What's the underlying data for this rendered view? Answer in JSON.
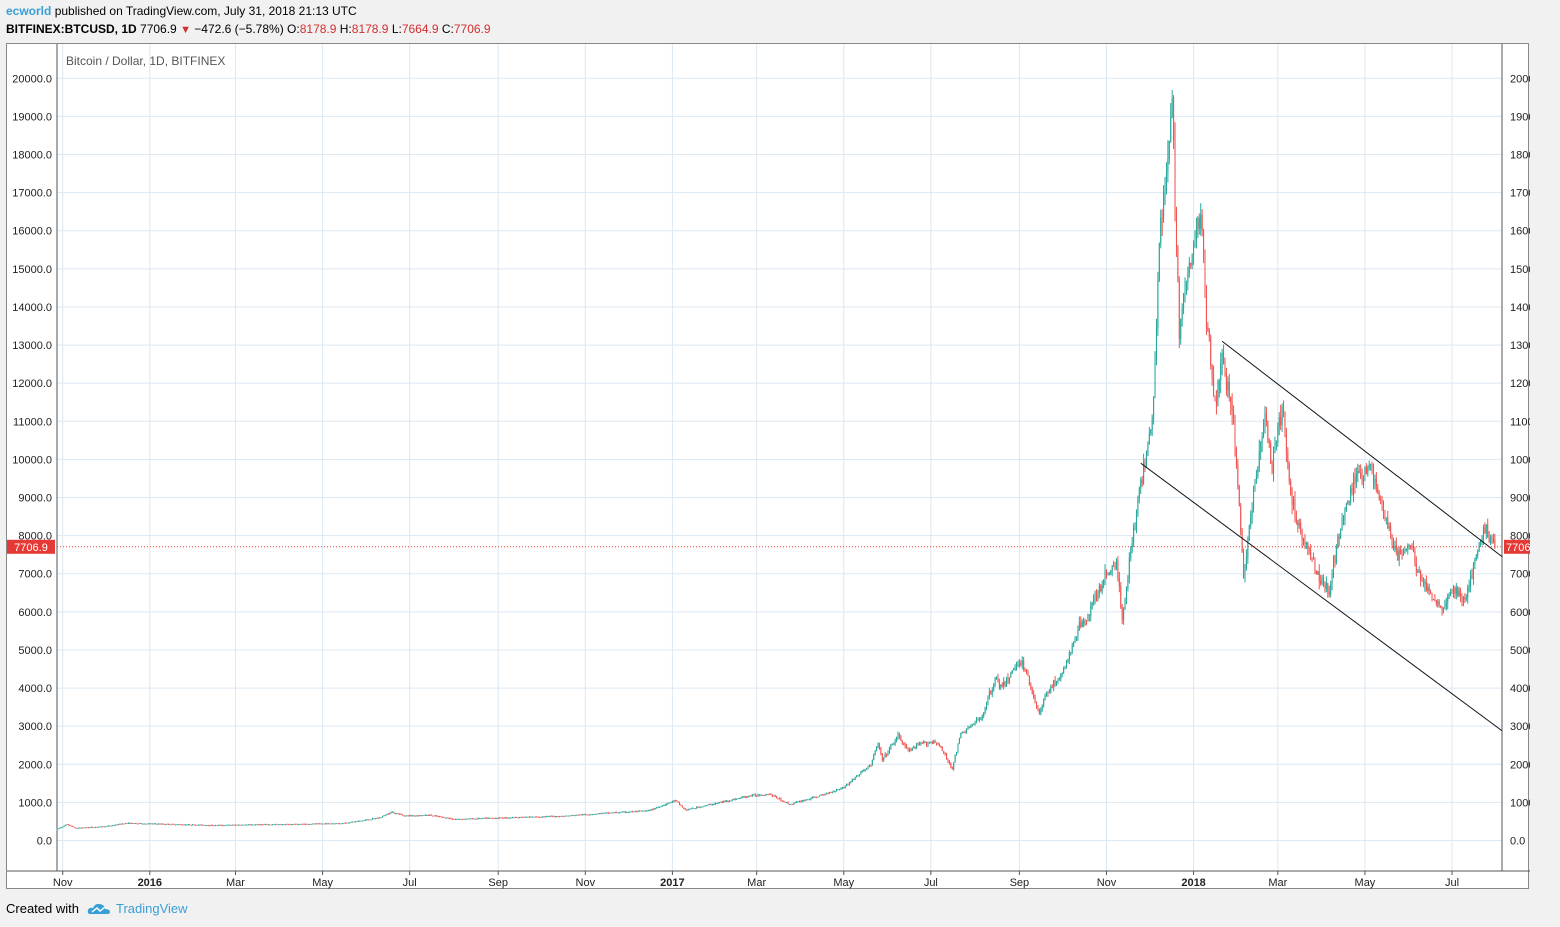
{
  "header": {
    "author": "ecworld",
    "published": "published on TradingView.com, July 31, 2018 21:13 UTC"
  },
  "symbol_line": {
    "symbol": "BITFINEX:BTCUSD, 1D",
    "last": "7706.9",
    "change": "−472.6 (−5.78%)",
    "o_label": "O:",
    "o_value": "8178.9",
    "h_label": "H:",
    "h_value": "8178.9",
    "l_label": "L:",
    "l_value": "7664.9",
    "c_label": "C:",
    "c_value": "7706.9",
    "direction_icon": "down-triangle-icon"
  },
  "footer": {
    "created_with": "Created with",
    "brand": "TradingView",
    "logo_icon": "tradingview-cloud-icon"
  },
  "colors": {
    "up": "#26a69a",
    "down": "#ef5350",
    "grid": "#dce8f2",
    "price_line": "#e53935",
    "price_tag_bg": "#e53935",
    "author": "#3a9fd6"
  },
  "chart_data": {
    "type": "candlestick",
    "title": "Bitcoin / Dollar, 1D, BITFINEX",
    "xlabel": "",
    "ylabel": "",
    "x_range": [
      "2015-10-28",
      "2018-08-05"
    ],
    "ylim": [
      -800,
      20900
    ],
    "y_ticks": [
      "0.0",
      "1000.0",
      "2000.0",
      "3000.0",
      "4000.0",
      "5000.0",
      "6000.0",
      "7000.0",
      "8000.0",
      "9000.0",
      "10000.0",
      "11000.0",
      "12000.0",
      "13000.0",
      "14000.0",
      "15000.0",
      "16000.0",
      "17000.0",
      "18000.0",
      "19000.0",
      "20000.0"
    ],
    "x_ticks": [
      {
        "label": "Nov",
        "date": "2015-11-01",
        "bold": false
      },
      {
        "label": "2016",
        "date": "2016-01-01",
        "bold": true
      },
      {
        "label": "Mar",
        "date": "2016-03-01",
        "bold": false
      },
      {
        "label": "May",
        "date": "2016-05-01",
        "bold": false
      },
      {
        "label": "Jul",
        "date": "2016-07-01",
        "bold": false
      },
      {
        "label": "Sep",
        "date": "2016-09-01",
        "bold": false
      },
      {
        "label": "Nov",
        "date": "2016-11-01",
        "bold": false
      },
      {
        "label": "2017",
        "date": "2017-01-01",
        "bold": true
      },
      {
        "label": "Mar",
        "date": "2017-03-01",
        "bold": false
      },
      {
        "label": "May",
        "date": "2017-05-01",
        "bold": false
      },
      {
        "label": "Jul",
        "date": "2017-07-01",
        "bold": false
      },
      {
        "label": "Sep",
        "date": "2017-09-01",
        "bold": false
      },
      {
        "label": "Nov",
        "date": "2017-11-01",
        "bold": false
      },
      {
        "label": "2018",
        "date": "2018-01-01",
        "bold": true
      },
      {
        "label": "Mar",
        "date": "2018-03-01",
        "bold": false
      },
      {
        "label": "May",
        "date": "2018-05-01",
        "bold": false
      },
      {
        "label": "Jul",
        "date": "2018-07-01",
        "bold": false
      }
    ],
    "grid": true,
    "close_path": [
      [
        "2015-10-28",
        300
      ],
      [
        "2015-11-04",
        420
      ],
      [
        "2015-11-10",
        330
      ],
      [
        "2015-12-01",
        370
      ],
      [
        "2015-12-15",
        455
      ],
      [
        "2016-01-15",
        430
      ],
      [
        "2016-02-15",
        400
      ],
      [
        "2016-03-15",
        420
      ],
      [
        "2016-04-15",
        430
      ],
      [
        "2016-05-15",
        455
      ],
      [
        "2016-05-28",
        520
      ],
      [
        "2016-06-10",
        600
      ],
      [
        "2016-06-18",
        750
      ],
      [
        "2016-06-28",
        650
      ],
      [
        "2016-07-15",
        665
      ],
      [
        "2016-08-02",
        560
      ],
      [
        "2016-08-20",
        580
      ],
      [
        "2016-09-15",
        610
      ],
      [
        "2016-10-15",
        640
      ],
      [
        "2016-11-15",
        720
      ],
      [
        "2016-12-15",
        780
      ],
      [
        "2017-01-03",
        1050
      ],
      [
        "2017-01-10",
        800
      ],
      [
        "2017-02-01",
        980
      ],
      [
        "2017-02-25",
        1180
      ],
      [
        "2017-03-10",
        1220
      ],
      [
        "2017-03-24",
        950
      ],
      [
        "2017-04-15",
        1180
      ],
      [
        "2017-05-01",
        1400
      ],
      [
        "2017-05-20",
        2000
      ],
      [
        "2017-05-25",
        2550
      ],
      [
        "2017-05-28",
        2100
      ],
      [
        "2017-06-08",
        2750
      ],
      [
        "2017-06-15",
        2350
      ],
      [
        "2017-06-25",
        2550
      ],
      [
        "2017-07-05",
        2600
      ],
      [
        "2017-07-16",
        1900
      ],
      [
        "2017-07-22",
        2800
      ],
      [
        "2017-08-05",
        3200
      ],
      [
        "2017-08-15",
        4250
      ],
      [
        "2017-08-20",
        4000
      ],
      [
        "2017-09-01",
        4750
      ],
      [
        "2017-09-05",
        4500
      ],
      [
        "2017-09-15",
        3300
      ],
      [
        "2017-09-20",
        3900
      ],
      [
        "2017-10-01",
        4350
      ],
      [
        "2017-10-13",
        5600
      ],
      [
        "2017-10-20",
        6000
      ],
      [
        "2017-11-01",
        7000
      ],
      [
        "2017-11-08",
        7300
      ],
      [
        "2017-11-12",
        5800
      ],
      [
        "2017-11-20",
        8200
      ],
      [
        "2017-11-28",
        10000
      ],
      [
        "2017-12-04",
        11500
      ],
      [
        "2017-12-08",
        16000
      ],
      [
        "2017-12-12",
        17000
      ],
      [
        "2017-12-17",
        19200
      ],
      [
        "2017-12-22",
        13500
      ],
      [
        "2017-12-28",
        14800
      ],
      [
        "2018-01-06",
        16500
      ],
      [
        "2018-01-10",
        13800
      ],
      [
        "2018-01-17",
        11200
      ],
      [
        "2018-01-20",
        12700
      ],
      [
        "2018-01-28",
        11400
      ],
      [
        "2018-02-02",
        8800
      ],
      [
        "2018-02-05",
        6900
      ],
      [
        "2018-02-10",
        8500
      ],
      [
        "2018-02-20",
        11200
      ],
      [
        "2018-02-25",
        9700
      ],
      [
        "2018-03-04",
        11400
      ],
      [
        "2018-03-10",
        9000
      ],
      [
        "2018-03-18",
        8000
      ],
      [
        "2018-03-30",
        6900
      ],
      [
        "2018-04-06",
        6600
      ],
      [
        "2018-04-12",
        7900
      ],
      [
        "2018-04-24",
        9500
      ],
      [
        "2018-05-05",
        9800
      ],
      [
        "2018-05-15",
        8500
      ],
      [
        "2018-05-23",
        7500
      ],
      [
        "2018-06-02",
        7700
      ],
      [
        "2018-06-11",
        6700
      ],
      [
        "2018-06-24",
        6100
      ],
      [
        "2018-07-02",
        6600
      ],
      [
        "2018-07-10",
        6300
      ],
      [
        "2018-07-18",
        7400
      ],
      [
        "2018-07-24",
        8250
      ],
      [
        "2018-07-31",
        7706.9
      ]
    ],
    "trendlines": [
      {
        "from": [
          "2018-01-21",
          13100
        ],
        "to": [
          "2018-08-05",
          7450
        ]
      },
      {
        "from": [
          "2017-11-25",
          9900
        ],
        "to": [
          "2018-08-05",
          2880
        ]
      }
    ],
    "last_price": 7706.9,
    "last_price_label": "7706.9"
  }
}
